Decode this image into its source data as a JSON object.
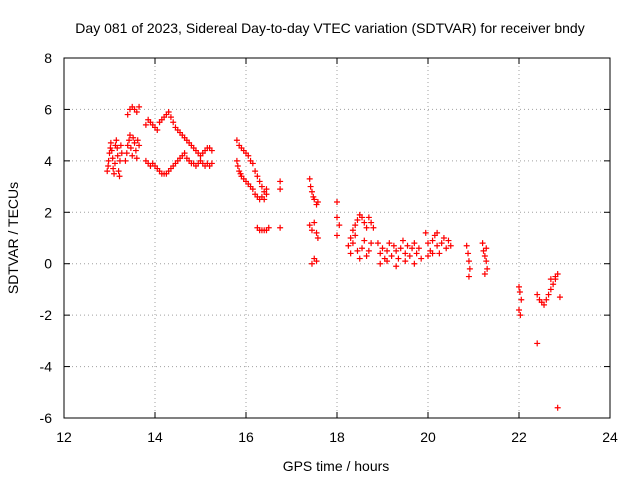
{
  "chart_data": {
    "type": "scatter",
    "title": "Day 081 of 2023, Sidereal Day-to-day VTEC variation (SDTVAR) for receiver bndy",
    "xlabel": "GPS time / hours",
    "ylabel": "SDTVAR / TECUs",
    "xlim": [
      12,
      24
    ],
    "ylim": [
      -6,
      8
    ],
    "xticks": [
      "12",
      "14",
      "16",
      "18",
      "20",
      "22",
      "24"
    ],
    "yticks": [
      "-6",
      "-4",
      "-2",
      "0",
      "2",
      "4",
      "6",
      "8"
    ],
    "grid": true,
    "marker": "plus",
    "color": "#ff0000",
    "points": [
      [
        12.95,
        3.6
      ],
      [
        12.97,
        3.8
      ],
      [
        12.98,
        4.0
      ],
      [
        13.0,
        4.3
      ],
      [
        13.02,
        4.5
      ],
      [
        13.03,
        4.7
      ],
      [
        13.05,
        4.4
      ],
      [
        13.07,
        4.1
      ],
      [
        13.08,
        3.7
      ],
      [
        13.1,
        3.5
      ],
      [
        13.12,
        3.9
      ],
      [
        13.13,
        4.6
      ],
      [
        13.15,
        4.8
      ],
      [
        13.17,
        4.5
      ],
      [
        13.18,
        4.2
      ],
      [
        13.2,
        3.6
      ],
      [
        13.22,
        3.4
      ],
      [
        13.23,
        4.0
      ],
      [
        13.25,
        4.6
      ],
      [
        13.27,
        4.3
      ],
      [
        13.35,
        4.0
      ],
      [
        13.38,
        4.3
      ],
      [
        13.4,
        4.6
      ],
      [
        13.43,
        4.8
      ],
      [
        13.45,
        5.0
      ],
      [
        13.47,
        4.5
      ],
      [
        13.5,
        4.2
      ],
      [
        13.52,
        4.9
      ],
      [
        13.55,
        4.7
      ],
      [
        13.58,
        4.4
      ],
      [
        13.6,
        4.1
      ],
      [
        13.62,
        4.8
      ],
      [
        13.65,
        4.6
      ],
      [
        13.4,
        5.8
      ],
      [
        13.45,
        6.0
      ],
      [
        13.5,
        6.1
      ],
      [
        13.55,
        6.0
      ],
      [
        13.6,
        5.9
      ],
      [
        13.65,
        6.1
      ],
      [
        13.8,
        5.4
      ],
      [
        13.85,
        5.6
      ],
      [
        13.9,
        5.5
      ],
      [
        13.95,
        5.4
      ],
      [
        14.0,
        5.3
      ],
      [
        14.05,
        5.2
      ],
      [
        14.1,
        5.5
      ],
      [
        14.15,
        5.6
      ],
      [
        14.2,
        5.7
      ],
      [
        14.25,
        5.8
      ],
      [
        14.3,
        5.9
      ],
      [
        14.35,
        5.7
      ],
      [
        14.4,
        5.5
      ],
      [
        14.45,
        5.3
      ],
      [
        14.5,
        5.2
      ],
      [
        14.55,
        5.1
      ],
      [
        14.6,
        5.0
      ],
      [
        14.65,
        4.9
      ],
      [
        14.7,
        4.8
      ],
      [
        14.75,
        4.7
      ],
      [
        14.8,
        4.6
      ],
      [
        14.85,
        4.5
      ],
      [
        14.9,
        4.4
      ],
      [
        14.95,
        4.3
      ],
      [
        15.0,
        4.2
      ],
      [
        15.05,
        4.3
      ],
      [
        15.1,
        4.4
      ],
      [
        15.15,
        4.5
      ],
      [
        15.2,
        4.5
      ],
      [
        15.25,
        4.4
      ],
      [
        13.8,
        4.0
      ],
      [
        13.85,
        3.9
      ],
      [
        13.9,
        3.8
      ],
      [
        13.95,
        3.9
      ],
      [
        14.0,
        3.8
      ],
      [
        14.05,
        3.7
      ],
      [
        14.1,
        3.6
      ],
      [
        14.15,
        3.5
      ],
      [
        14.2,
        3.5
      ],
      [
        14.25,
        3.5
      ],
      [
        14.3,
        3.6
      ],
      [
        14.35,
        3.7
      ],
      [
        14.4,
        3.8
      ],
      [
        14.45,
        3.9
      ],
      [
        14.5,
        4.0
      ],
      [
        14.55,
        4.1
      ],
      [
        14.6,
        4.2
      ],
      [
        14.65,
        4.3
      ],
      [
        14.7,
        4.1
      ],
      [
        14.75,
        4.0
      ],
      [
        14.8,
        3.9
      ],
      [
        14.85,
        3.9
      ],
      [
        14.9,
        3.8
      ],
      [
        14.95,
        3.9
      ],
      [
        15.0,
        4.0
      ],
      [
        15.05,
        3.9
      ],
      [
        15.1,
        3.8
      ],
      [
        15.15,
        3.9
      ],
      [
        15.2,
        3.8
      ],
      [
        15.25,
        3.9
      ],
      [
        15.8,
        4.8
      ],
      [
        15.85,
        4.6
      ],
      [
        15.9,
        4.5
      ],
      [
        15.95,
        4.4
      ],
      [
        16.0,
        4.3
      ],
      [
        16.05,
        4.2
      ],
      [
        16.1,
        4.0
      ],
      [
        16.15,
        3.9
      ],
      [
        16.2,
        3.6
      ],
      [
        16.25,
        3.4
      ],
      [
        16.3,
        3.2
      ],
      [
        16.35,
        3.0
      ],
      [
        16.4,
        2.8
      ],
      [
        16.45,
        2.9
      ],
      [
        15.8,
        4.0
      ],
      [
        15.82,
        3.8
      ],
      [
        15.85,
        3.6
      ],
      [
        15.88,
        3.5
      ],
      [
        15.9,
        3.4
      ],
      [
        15.95,
        3.3
      ],
      [
        16.0,
        3.2
      ],
      [
        16.05,
        3.1
      ],
      [
        16.1,
        3.0
      ],
      [
        16.15,
        2.9
      ],
      [
        16.2,
        2.7
      ],
      [
        16.25,
        2.6
      ],
      [
        16.3,
        2.5
      ],
      [
        16.35,
        2.6
      ],
      [
        16.4,
        2.5
      ],
      [
        16.45,
        2.7
      ],
      [
        16.25,
        1.4
      ],
      [
        16.3,
        1.3
      ],
      [
        16.35,
        1.3
      ],
      [
        16.4,
        1.3
      ],
      [
        16.45,
        1.3
      ],
      [
        16.5,
        1.4
      ],
      [
        16.75,
        1.4
      ],
      [
        16.75,
        3.2
      ],
      [
        16.75,
        2.9
      ],
      [
        17.4,
        3.3
      ],
      [
        17.42,
        3.0
      ],
      [
        17.45,
        2.8
      ],
      [
        17.48,
        2.6
      ],
      [
        17.5,
        2.5
      ],
      [
        17.55,
        2.3
      ],
      [
        17.58,
        2.4
      ],
      [
        17.4,
        1.5
      ],
      [
        17.45,
        1.3
      ],
      [
        17.5,
        1.6
      ],
      [
        17.55,
        1.2
      ],
      [
        17.58,
        1.0
      ],
      [
        17.45,
        0.0
      ],
      [
        17.5,
        0.2
      ],
      [
        17.55,
        0.1
      ],
      [
        18.0,
        2.4
      ],
      [
        18.0,
        1.8
      ],
      [
        18.05,
        1.5
      ],
      [
        18.0,
        1.1
      ],
      [
        18.25,
        0.7
      ],
      [
        18.3,
        1.0
      ],
      [
        18.35,
        1.3
      ],
      [
        18.4,
        1.5
      ],
      [
        18.45,
        1.7
      ],
      [
        18.5,
        1.9
      ],
      [
        18.55,
        1.8
      ],
      [
        18.6,
        1.6
      ],
      [
        18.65,
        1.4
      ],
      [
        18.7,
        1.8
      ],
      [
        18.75,
        1.6
      ],
      [
        18.8,
        1.4
      ],
      [
        18.3,
        0.4
      ],
      [
        18.35,
        0.8
      ],
      [
        18.4,
        1.1
      ],
      [
        18.45,
        0.5
      ],
      [
        18.5,
        0.2
      ],
      [
        18.55,
        0.6
      ],
      [
        18.6,
        0.9
      ],
      [
        18.65,
        0.3
      ],
      [
        18.7,
        0.5
      ],
      [
        18.75,
        0.8
      ],
      [
        18.9,
        0.8
      ],
      [
        18.95,
        0.4
      ],
      [
        19.0,
        0.6
      ],
      [
        19.05,
        0.2
      ],
      [
        19.1,
        0.5
      ],
      [
        19.15,
        0.8
      ],
      [
        19.2,
        0.3
      ],
      [
        19.25,
        0.7
      ],
      [
        19.3,
        0.5
      ],
      [
        19.35,
        0.2
      ],
      [
        19.4,
        0.6
      ],
      [
        19.45,
        0.9
      ],
      [
        19.5,
        0.4
      ],
      [
        19.55,
        0.7
      ],
      [
        19.6,
        0.3
      ],
      [
        19.65,
        0.6
      ],
      [
        19.7,
        0.8
      ],
      [
        19.75,
        0.4
      ],
      [
        19.8,
        0.6
      ],
      [
        19.85,
        0.2
      ],
      [
        18.95,
        0.0
      ],
      [
        19.1,
        0.1
      ],
      [
        19.3,
        -0.1
      ],
      [
        19.5,
        0.1
      ],
      [
        19.7,
        0.0
      ],
      [
        19.95,
        1.2
      ],
      [
        20.0,
        0.8
      ],
      [
        20.05,
        0.5
      ],
      [
        20.1,
        0.9
      ],
      [
        20.15,
        1.1
      ],
      [
        20.2,
        0.7
      ],
      [
        20.25,
        0.4
      ],
      [
        20.3,
        0.8
      ],
      [
        20.35,
        1.0
      ],
      [
        20.4,
        0.6
      ],
      [
        20.45,
        0.9
      ],
      [
        20.5,
        0.7
      ],
      [
        20.0,
        0.3
      ],
      [
        20.1,
        0.4
      ],
      [
        20.2,
        1.2
      ],
      [
        20.85,
        0.7
      ],
      [
        20.88,
        0.4
      ],
      [
        20.9,
        0.1
      ],
      [
        20.92,
        -0.2
      ],
      [
        20.9,
        -0.5
      ],
      [
        21.2,
        0.8
      ],
      [
        21.22,
        0.5
      ],
      [
        21.25,
        0.3
      ],
      [
        21.28,
        0.1
      ],
      [
        21.3,
        -0.2
      ],
      [
        21.25,
        -0.4
      ],
      [
        21.28,
        0.6
      ],
      [
        22.0,
        -0.9
      ],
      [
        22.02,
        -1.1
      ],
      [
        22.05,
        -1.4
      ],
      [
        22.0,
        -1.8
      ],
      [
        22.03,
        -2.0
      ],
      [
        22.4,
        -1.2
      ],
      [
        22.45,
        -1.4
      ],
      [
        22.5,
        -1.5
      ],
      [
        22.55,
        -1.6
      ],
      [
        22.6,
        -1.4
      ],
      [
        22.65,
        -1.2
      ],
      [
        22.7,
        -1.0
      ],
      [
        22.75,
        -0.8
      ],
      [
        22.8,
        -0.6
      ],
      [
        22.85,
        -0.4
      ],
      [
        22.9,
        -1.3
      ],
      [
        22.7,
        -0.6
      ],
      [
        22.8,
        -0.5
      ],
      [
        22.4,
        -3.1
      ],
      [
        22.85,
        -5.6
      ]
    ]
  }
}
